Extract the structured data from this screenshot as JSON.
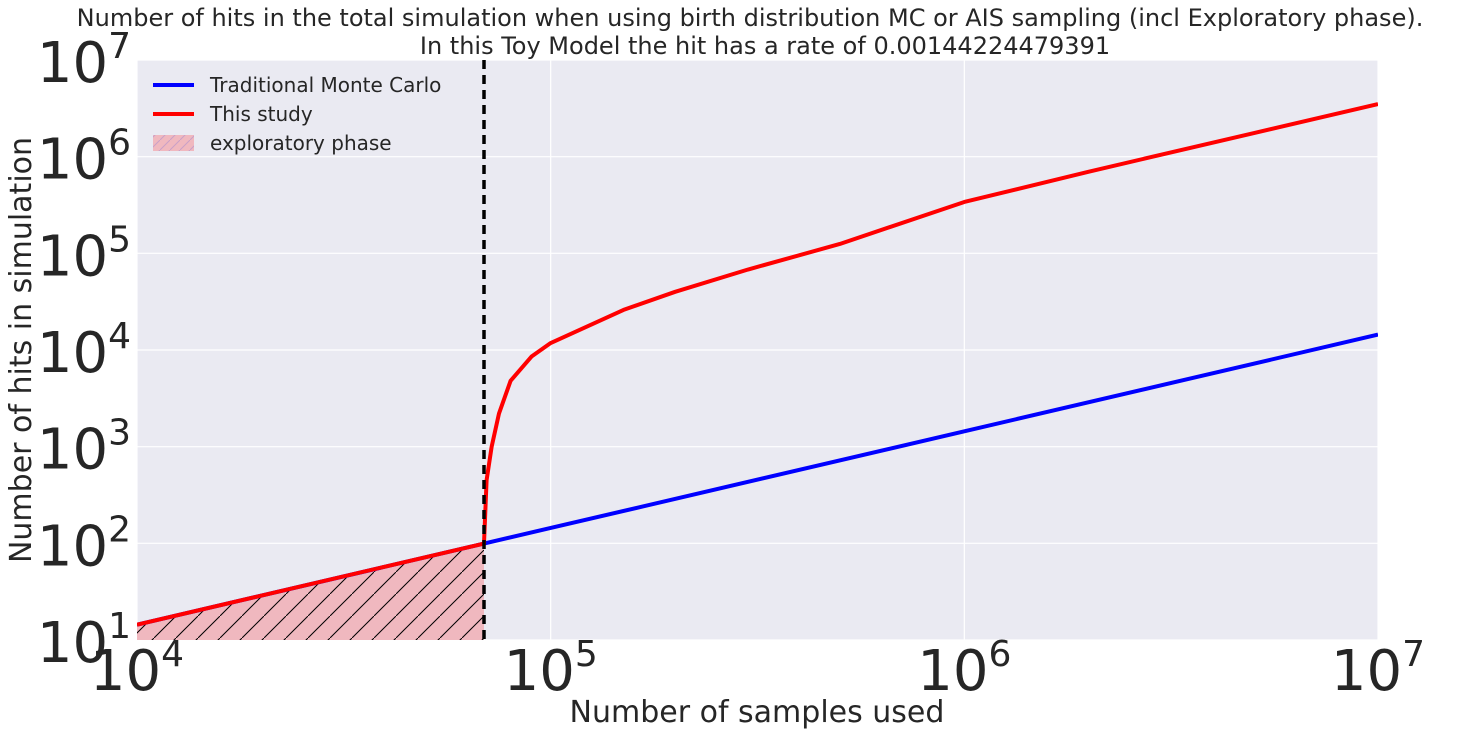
{
  "chart_data": {
    "type": "line",
    "title_line1": "Number of hits in the total simulation when using birth distribution MC or AIS sampling (incl Exploratory phase).",
    "title_line2": "In this Toy Model the hit has a rate of 0.00144224479391",
    "xlabel": "Number of samples used",
    "ylabel": "Number of hits in simulation",
    "xscale": "log",
    "yscale": "log",
    "xlim": [
      10000,
      10000000
    ],
    "ylim": [
      10,
      10000000
    ],
    "grid": true,
    "legend_position": "top-left",
    "x_ticks": [
      {
        "base": "10",
        "exp": "4",
        "value": 10000
      },
      {
        "base": "10",
        "exp": "5",
        "value": 100000
      },
      {
        "base": "10",
        "exp": "6",
        "value": 1000000
      },
      {
        "base": "10",
        "exp": "7",
        "value": 10000000
      }
    ],
    "y_ticks": [
      {
        "base": "10",
        "exp": "1",
        "value": 10
      },
      {
        "base": "10",
        "exp": "2",
        "value": 100
      },
      {
        "base": "10",
        "exp": "3",
        "value": 1000
      },
      {
        "base": "10",
        "exp": "4",
        "value": 10000
      },
      {
        "base": "10",
        "exp": "5",
        "value": 100000
      },
      {
        "base": "10",
        "exp": "6",
        "value": 1000000
      },
      {
        "base": "10",
        "exp": "7",
        "value": 10000000
      }
    ],
    "exploratory_end_x": 69000,
    "series": [
      {
        "name": "Traditional Monte Carlo",
        "color": "#0000ff",
        "x": [
          10000,
          69000,
          100000,
          1000000,
          10000000
        ],
        "y": [
          14.4,
          99.5,
          144.2,
          1442,
          14422
        ]
      },
      {
        "name": "This study",
        "color": "#ff0000",
        "x": [
          10000,
          20000,
          40000,
          69000,
          70000,
          72000,
          75000,
          80000,
          90000,
          100000,
          150000,
          200000,
          300000,
          500000,
          1000000,
          2000000,
          5000000,
          10000000
        ],
        "y": [
          14.4,
          28.8,
          57.7,
          99.5,
          450,
          1000,
          2200,
          4800,
          8600,
          11800,
          26000,
          40000,
          68000,
          125000,
          340000,
          700000,
          1750000,
          3500000
        ]
      }
    ],
    "legend": [
      {
        "label": "Traditional Monte Carlo",
        "kind": "line",
        "color": "#0000ff"
      },
      {
        "label": "This study",
        "kind": "line",
        "color": "#ff0000"
      },
      {
        "label": "exploratory phase",
        "kind": "patch",
        "color": "#f0b8bf"
      }
    ],
    "colors": {
      "plot_bg": "#eaeaf2",
      "grid": "#ffffff",
      "exploratory_fill": "#f0b8bf",
      "hatch": "#000000",
      "vline": "#000000"
    }
  }
}
